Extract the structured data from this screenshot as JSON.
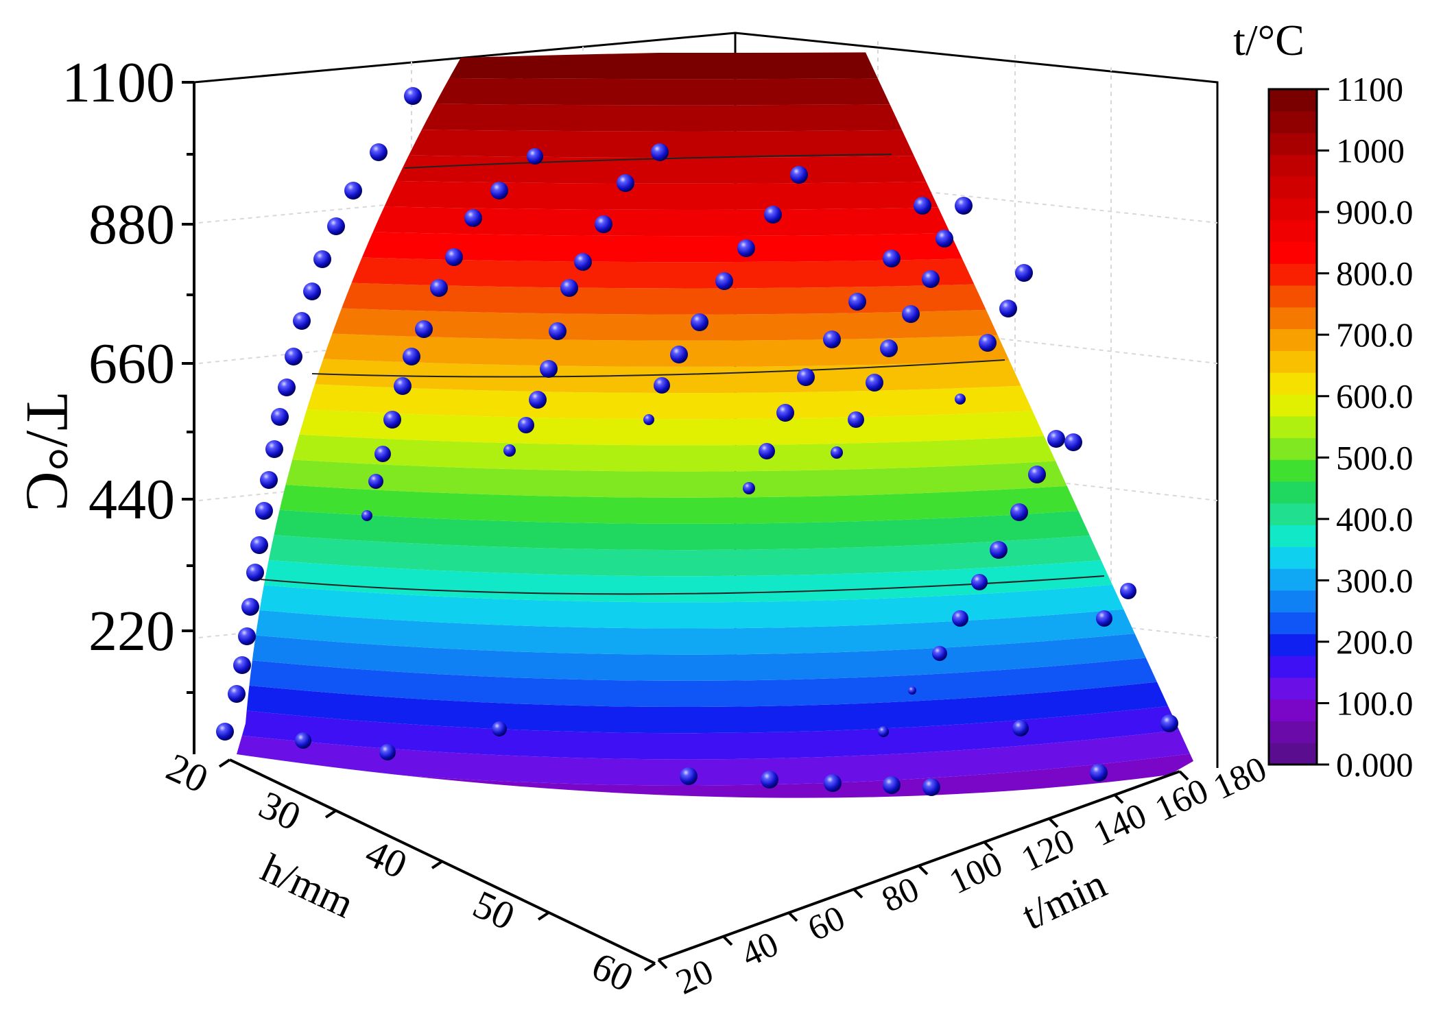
{
  "chart_data": {
    "type": "surface3d",
    "title": "",
    "zlabel": "T/°C",
    "ylabel": "h/mm",
    "xlabel": "t/min",
    "zlim": [
      0,
      1100
    ],
    "ylim": [
      20,
      60
    ],
    "xlim": [
      20,
      180
    ],
    "z_ticks": [
      "220",
      "440",
      "660",
      "880",
      "1100"
    ],
    "h_ticks": [
      "20",
      "30",
      "40",
      "50",
      "60"
    ],
    "t_ticks": [
      "20",
      "40",
      "60",
      "80",
      "100",
      "120",
      "140",
      "160",
      "180"
    ],
    "grid": true,
    "colorbar": {
      "title": "t/°C",
      "range": [
        0,
        1100
      ],
      "levels": 33,
      "ticks": [
        "0.000",
        "100.0",
        "200.0",
        "300.0",
        "400.0",
        "500.0",
        "600.0",
        "700.0",
        "800.0",
        "900.0",
        "1000",
        "1100"
      ],
      "colors": [
        "#5a0d8f",
        "#6a0aa8",
        "#7a06c8",
        "#6a10e6",
        "#4010f5",
        "#1020f0",
        "#1055f5",
        "#1080f5",
        "#10a8f5",
        "#10d0f0",
        "#10e8c8",
        "#20e090",
        "#20d860",
        "#40e030",
        "#80e820",
        "#b0f010",
        "#e0f000",
        "#f5e000",
        "#f8c000",
        "#f8a000",
        "#f57800",
        "#f55000",
        "#f82000",
        "#ff0000",
        "#f00000",
        "#e00000",
        "#d00000",
        "#c00000",
        "#a80000",
        "#900000",
        "#7a0000"
      ]
    },
    "contour_lines": [
      300,
      660,
      960
    ],
    "series": [
      {
        "values_t_min": [
          20,
          20,
          20,
          20,
          20,
          20,
          20,
          20,
          20,
          20,
          20,
          20,
          20,
          20,
          20,
          20,
          20,
          20,
          20,
          20,
          20,
          20,
          20
        ],
        "values_h_mm": [
          60,
          58,
          56,
          54,
          52,
          50,
          48,
          46,
          44,
          42,
          40,
          38,
          36,
          34,
          32,
          30,
          28,
          26,
          24,
          22,
          21,
          20,
          20
        ],
        "values_T_C": [
          20,
          80,
          140,
          190,
          240,
          300,
          350,
          400,
          440,
          480,
          520,
          560,
          600,
          640,
          680,
          730,
          780,
          830,
          880,
          930,
          970,
          1000,
          1040
        ]
      }
    ]
  }
}
